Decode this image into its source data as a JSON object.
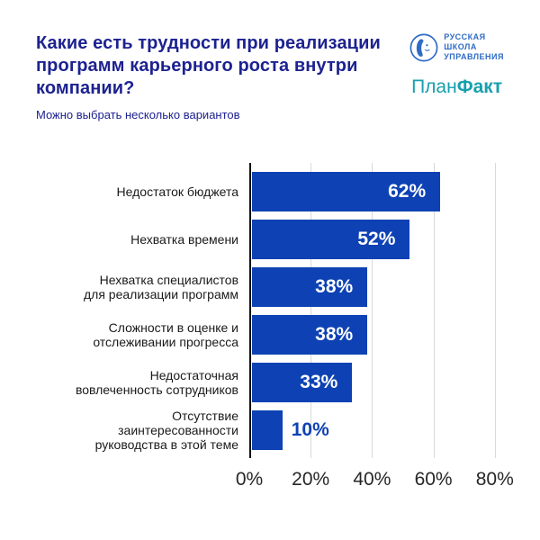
{
  "header": {
    "title": "Какие есть трудности при реализации\nпрограмм карьерного роста внутри\nкомпании?",
    "subtitle": "Можно выбрать несколько вариантов"
  },
  "logos": {
    "rsu_school": {
      "icon": "mona-lisa-circle-icon",
      "line1": "РУССКАЯ",
      "line2": "ШКОЛА",
      "line3": "УПРАВЛЕНИЯ"
    },
    "planfact": {
      "regular": "План",
      "bold": "Факт"
    }
  },
  "chart_data": {
    "type": "bar",
    "orientation": "horizontal",
    "title": "Какие есть трудности при реализации программ карьерного роста внутри компании?",
    "subtitle": "Можно выбрать несколько вариантов",
    "categories": [
      "Недостаток бюджета",
      "Нехватка времени",
      "Нехватка специалистов\nдля реализации программ",
      "Сложности в оценке и\nотслеживании прогресса",
      "Недостаточная\nвовлеченность сотрудников",
      "Отсутствие\nзаинтересованности\nруководства в этой теме"
    ],
    "values": [
      62,
      52,
      38,
      38,
      33,
      10
    ],
    "value_labels": [
      "62%",
      "52%",
      "38%",
      "38%",
      "33%",
      "10%"
    ],
    "x_ticks": [
      {
        "label": "0%",
        "value": 0
      },
      {
        "label": "20%",
        "value": 20
      },
      {
        "label": "40%",
        "value": 40
      },
      {
        "label": "60%",
        "value": 60
      },
      {
        "label": "80%",
        "value": 80
      }
    ],
    "gridline_values": [
      20,
      40,
      60,
      80
    ],
    "xlim": [
      0,
      83
    ],
    "unit": "percent",
    "legend": "none",
    "grid": "vertical",
    "outside_label_threshold": 15
  },
  "colors": {
    "bar_blue": "#0E42B4",
    "title_navy": "#1D2290",
    "planfact_teal": "#17A0AE",
    "rsu_blue": "#2F6BC6",
    "gridline": "#D9D9D9",
    "axis_line": "#0B0B0B",
    "label_text": "#1A1A1A",
    "tick_text": "#262626",
    "white": "#FFFFFF"
  }
}
